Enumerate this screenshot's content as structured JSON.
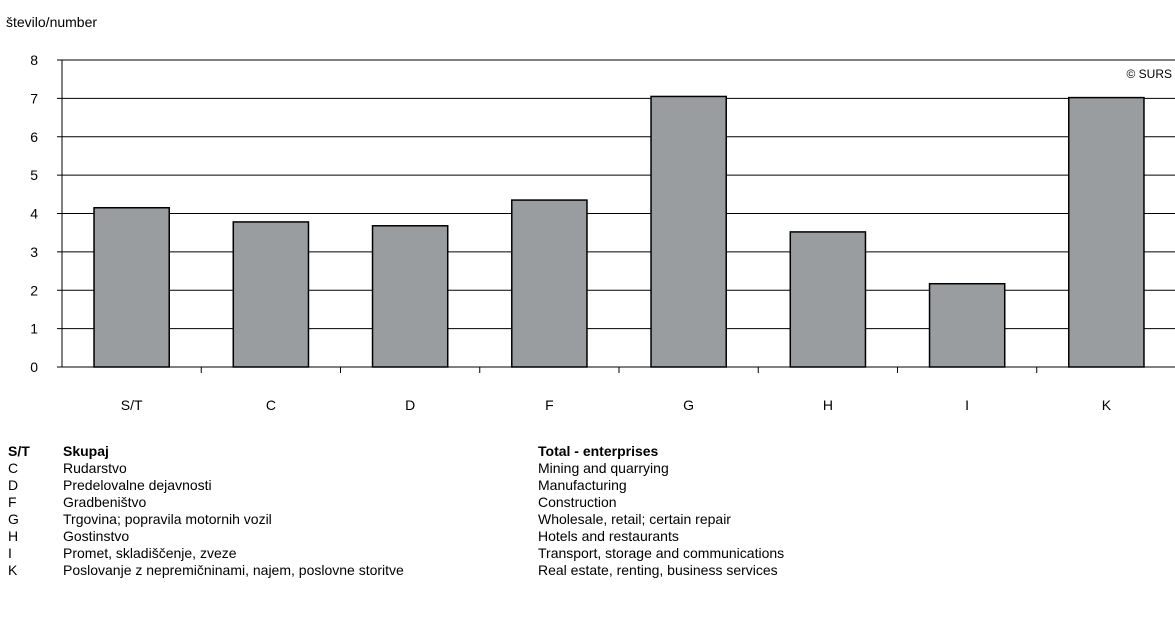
{
  "chart_data": {
    "type": "bar",
    "ylabel": "število/number",
    "watermark": "© SURS",
    "ylim": [
      0,
      8
    ],
    "yticks": [
      0,
      1,
      2,
      3,
      4,
      5,
      6,
      7,
      8
    ],
    "categories": [
      "S/T",
      "C",
      "D",
      "F",
      "G",
      "H",
      "I",
      "K"
    ],
    "values": [
      4.15,
      3.78,
      3.68,
      4.35,
      7.05,
      3.52,
      2.17,
      7.02
    ],
    "bar_color": "#999da0",
    "grid": true
  },
  "legend": [
    {
      "code": "S/T",
      "sl": "Skupaj",
      "en": "Total - enterprises",
      "bold": true
    },
    {
      "code": "C",
      "sl": "Rudarstvo",
      "en": "Mining and quarrying"
    },
    {
      "code": "D",
      "sl": "Predelovalne dejavnosti",
      "en": "Manufacturing"
    },
    {
      "code": "F",
      "sl": "Gradbeništvo",
      "en": "Construction"
    },
    {
      "code": "G",
      "sl": "Trgovina; popravila motornih vozil",
      "en": "Wholesale, retail; certain repair"
    },
    {
      "code": "H",
      "sl": "Gostinstvo",
      "en": "Hotels and restaurants"
    },
    {
      "code": "I",
      "sl": "Promet, skladiščenje, zveze",
      "en": "Transport, storage and communications"
    },
    {
      "code": "K",
      "sl": "Poslovanje z nepremičninami, najem, poslovne storitve",
      "en": "Real estate, renting, business services"
    }
  ]
}
